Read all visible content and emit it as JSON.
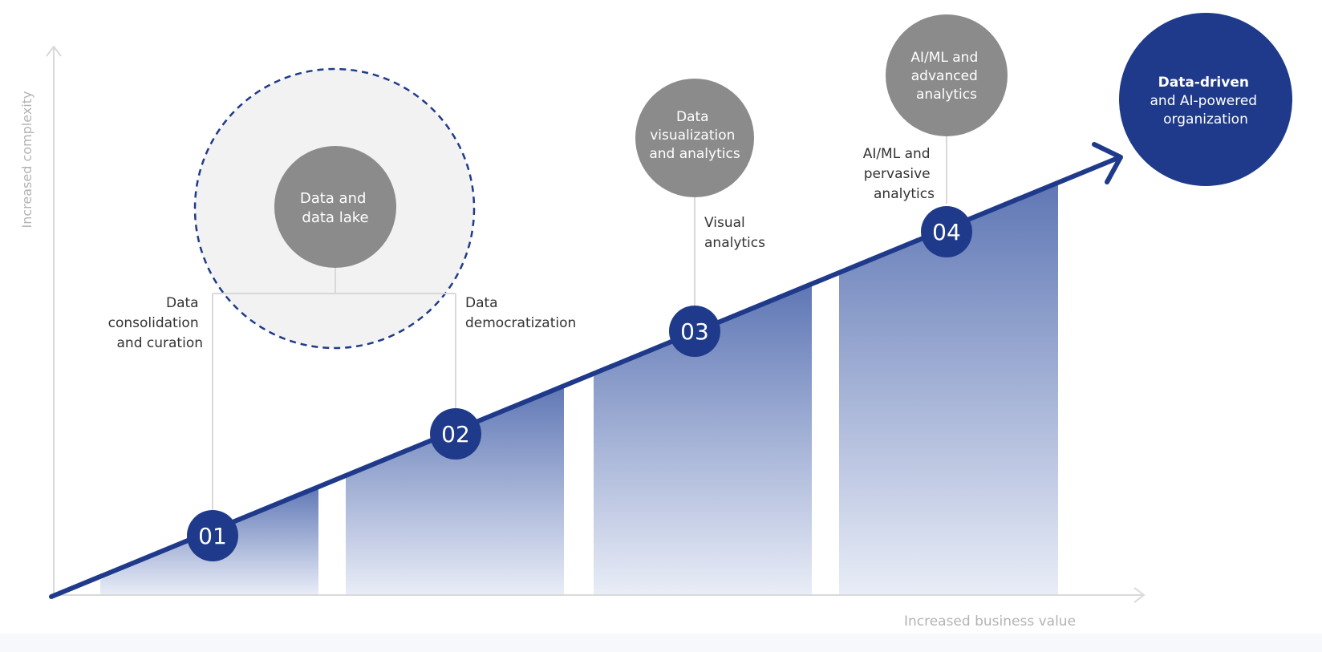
{
  "axes": {
    "y_label": "Increased complexity",
    "x_label": "Increased business value"
  },
  "colors": {
    "navy": "#1f3a8a",
    "gray_circle": "#8b8b8b",
    "axis": "#d9d9d9",
    "label_text": "#333333",
    "axis_text": "#b3b3b3",
    "dashed_fill": "#f2f2f2"
  },
  "stages": [
    {
      "number": "01",
      "label": [
        "Data",
        "consolidation",
        "and curation"
      ]
    },
    {
      "number": "02",
      "label": [
        "Data",
        "democratization"
      ]
    },
    {
      "number": "03",
      "label": [
        "Visual",
        "analytics"
      ]
    },
    {
      "number": "04",
      "label": [
        "AI/ML and",
        "pervasive",
        "analytics"
      ]
    }
  ],
  "bubbles": {
    "data_lake": [
      "Data and",
      "data lake"
    ],
    "visualization": [
      "Data",
      "visualization",
      "and analytics"
    ],
    "aiml": [
      "AI/ML and",
      "advanced",
      "analytics"
    ]
  },
  "goal": {
    "bold": "Data-driven",
    "rest": [
      "and AI-powered",
      "organization"
    ]
  }
}
